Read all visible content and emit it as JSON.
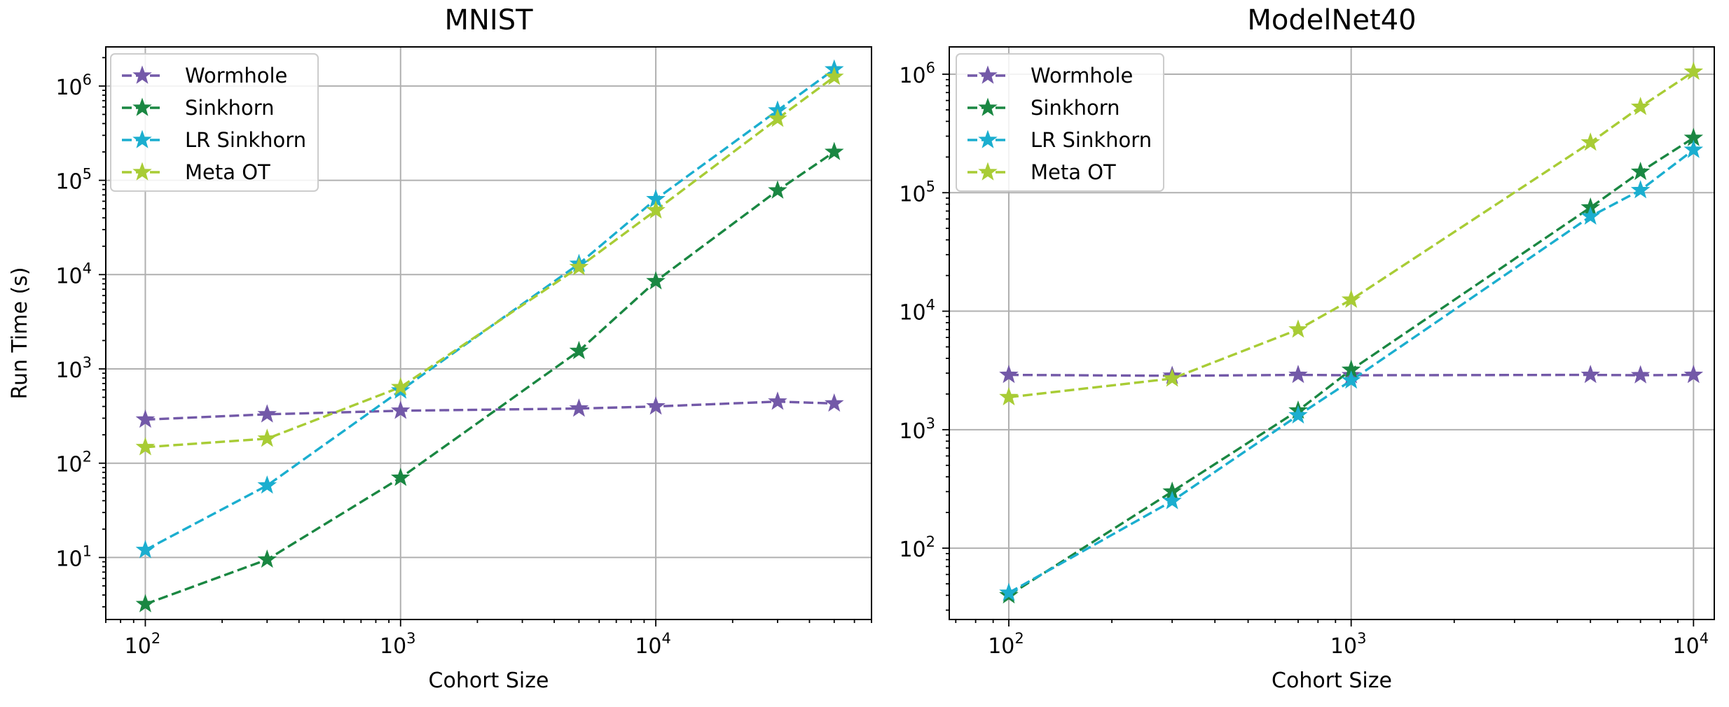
{
  "chart_data": [
    {
      "type": "line",
      "title": "MNIST",
      "xlabel": "Cohort Size",
      "ylabel": "Run Time (s)",
      "xscale": "log",
      "yscale": "log",
      "xlim": [
        70,
        70000
      ],
      "ylim": [
        2.2,
        2600000
      ],
      "x_ticks": [
        {
          "value": 100,
          "mantissa": "10",
          "exponent": "2"
        },
        {
          "value": 1000,
          "mantissa": "10",
          "exponent": "3"
        },
        {
          "value": 10000,
          "mantissa": "10",
          "exponent": "4"
        }
      ],
      "y_ticks": [
        {
          "value": 10,
          "mantissa": "10",
          "exponent": "1"
        },
        {
          "value": 100,
          "mantissa": "10",
          "exponent": "2"
        },
        {
          "value": 1000,
          "mantissa": "10",
          "exponent": "3"
        },
        {
          "value": 10000,
          "mantissa": "10",
          "exponent": "4"
        },
        {
          "value": 100000,
          "mantissa": "10",
          "exponent": "5"
        },
        {
          "value": 1000000,
          "mantissa": "10",
          "exponent": "6"
        }
      ],
      "grid": true,
      "legend_position": "top-left",
      "series": [
        {
          "name": "Wormhole",
          "color": "#7359A8",
          "x": [
            100,
            300,
            1000,
            5000,
            10000,
            30000,
            50000
          ],
          "y": [
            290,
            330,
            360,
            380,
            400,
            450,
            430
          ]
        },
        {
          "name": "Sinkhorn",
          "color": "#1A8742",
          "x": [
            100,
            300,
            1000,
            5000,
            10000,
            30000,
            50000
          ],
          "y": [
            3.2,
            9.5,
            70,
            1550,
            8500,
            78000,
            200000
          ]
        },
        {
          "name": "LR Sinkhorn",
          "color": "#1BAECF",
          "x": [
            100,
            300,
            1000,
            5000,
            10000,
            30000,
            50000
          ],
          "y": [
            12,
            58,
            590,
            13000,
            63000,
            550000,
            1500000
          ]
        },
        {
          "name": "Meta OT",
          "color": "#A8CC35",
          "x": [
            100,
            300,
            1000,
            5000,
            10000,
            30000,
            50000
          ],
          "y": [
            148,
            182,
            640,
            12000,
            48000,
            450000,
            1250000
          ]
        }
      ]
    },
    {
      "type": "line",
      "title": "ModelNet40",
      "xlabel": "Cohort Size",
      "ylabel": "",
      "xscale": "log",
      "yscale": "log",
      "xlim": [
        67,
        11500
      ],
      "ylim": [
        25,
        1700000
      ],
      "x_ticks": [
        {
          "value": 100,
          "mantissa": "10",
          "exponent": "2"
        },
        {
          "value": 1000,
          "mantissa": "10",
          "exponent": "3"
        },
        {
          "value": 10000,
          "mantissa": "10",
          "exponent": "4"
        }
      ],
      "y_ticks": [
        {
          "value": 100,
          "mantissa": "10",
          "exponent": "2"
        },
        {
          "value": 1000,
          "mantissa": "10",
          "exponent": "3"
        },
        {
          "value": 10000,
          "mantissa": "10",
          "exponent": "4"
        },
        {
          "value": 100000,
          "mantissa": "10",
          "exponent": "5"
        },
        {
          "value": 1000000,
          "mantissa": "10",
          "exponent": "6"
        }
      ],
      "grid": true,
      "legend_position": "top-left",
      "series": [
        {
          "name": "Wormhole",
          "color": "#7359A8",
          "x": [
            100,
            300,
            700,
            1000,
            5000,
            7000,
            10000
          ],
          "y": [
            2900,
            2850,
            2900,
            2880,
            2900,
            2880,
            2900
          ]
        },
        {
          "name": "Sinkhorn",
          "color": "#1A8742",
          "x": [
            100,
            300,
            700,
            1000,
            5000,
            7000,
            10000
          ],
          "y": [
            40,
            300,
            1450,
            3200,
            75000,
            150000,
            290000
          ]
        },
        {
          "name": "LR Sinkhorn",
          "color": "#1BAECF",
          "x": [
            100,
            300,
            700,
            1000,
            5000,
            7000,
            10000
          ],
          "y": [
            42,
            250,
            1320,
            2600,
            63000,
            105000,
            230000
          ]
        },
        {
          "name": "Meta OT",
          "color": "#A8CC35",
          "x": [
            100,
            300,
            700,
            1000,
            5000,
            7000,
            10000
          ],
          "y": [
            1880,
            2700,
            7000,
            12500,
            265000,
            530000,
            1050000
          ]
        }
      ]
    }
  ]
}
